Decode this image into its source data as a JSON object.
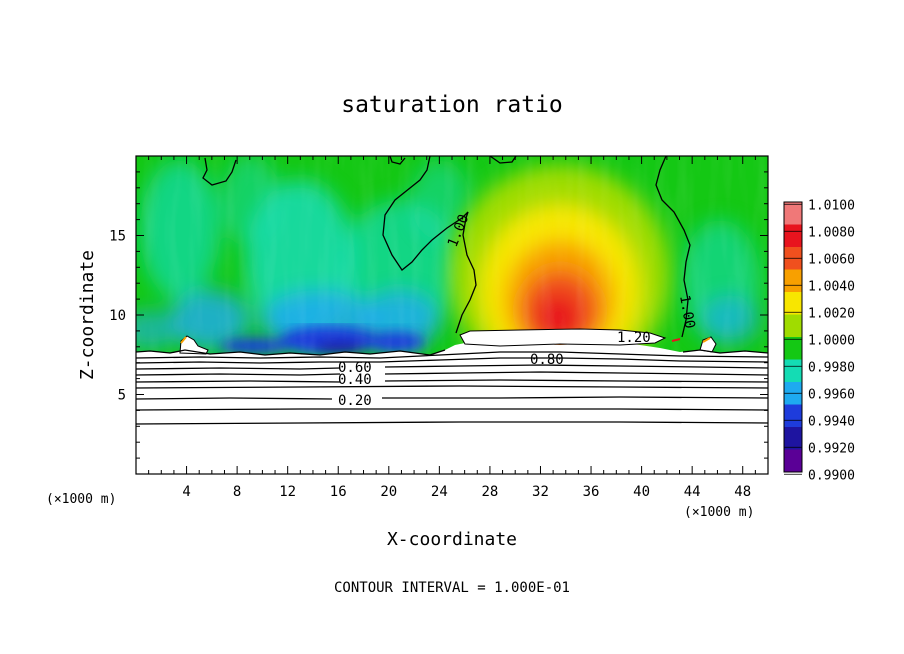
{
  "chart_data": {
    "type": "heatmap",
    "title": "saturation ratio",
    "xlabel": "X-coordinate",
    "ylabel": "Z-coordinate",
    "x_unit": "(×1000 m)",
    "xlim": [
      0,
      50
    ],
    "ylim": [
      0,
      20
    ],
    "x_ticks": [
      4,
      8,
      12,
      16,
      20,
      24,
      28,
      32,
      36,
      40,
      44,
      48
    ],
    "y_ticks": [
      5,
      10,
      15
    ],
    "colorbar": {
      "min": 0.99,
      "max": 1.01,
      "tick_labels": [
        "1.0100",
        "1.0080",
        "1.0060",
        "1.0040",
        "1.0020",
        "1.0000",
        "0.9980",
        "0.9960",
        "0.9940",
        "0.9920",
        "0.9900"
      ],
      "colors": [
        "#f07878",
        "#e8141e",
        "#f0501e",
        "#f8a000",
        "#f8e600",
        "#a0dc00",
        "#14c814",
        "#14dcb4",
        "#1eaaf0",
        "#1e3cdc",
        "#1e14a0",
        "#5a0096"
      ]
    },
    "contour_labels": [
      {
        "text": "1.00",
        "x": 24.8,
        "z": 14.5
      },
      {
        "text": "1.00",
        "x": 43.3,
        "z": 10.2
      },
      {
        "text": "1.20",
        "x": 39.8,
        "z": 8.6
      },
      {
        "text": "0.80",
        "x": 32.6,
        "z": 7.1
      },
      {
        "text": "0.60",
        "x": 17.8,
        "z": 6.7
      },
      {
        "text": "0.40",
        "x": 17.8,
        "z": 5.9
      },
      {
        "text": "0.20",
        "x": 17.8,
        "z": 4.6
      }
    ],
    "contour_interval_text": "CONTOUR INTERVAL = 1.000E-01"
  }
}
